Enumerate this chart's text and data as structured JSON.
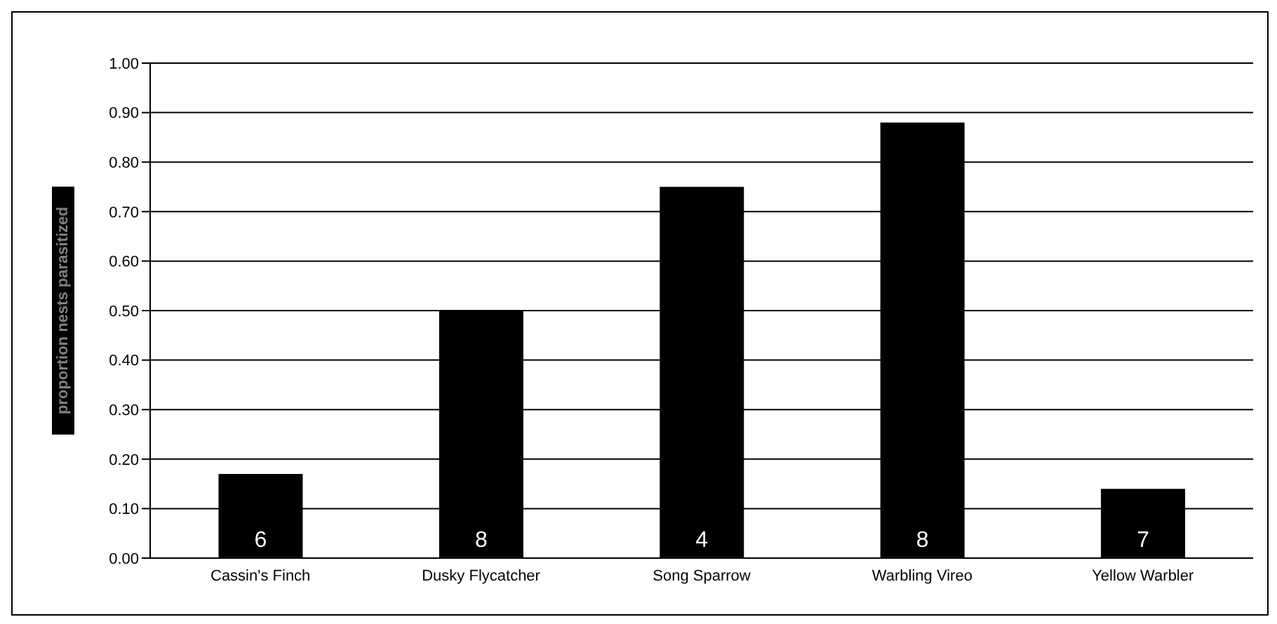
{
  "chart_data": {
    "type": "bar",
    "ylabel": "proportion nests parasitized",
    "categories": [
      "Cassin's Finch",
      "Dusky Flycatcher",
      "Song Sparrow",
      "Warbling Vireo",
      "Yellow Warbler"
    ],
    "values": [
      0.17,
      0.5,
      0.75,
      0.88,
      0.14
    ],
    "color": "#000000",
    "ylim": [
      0,
      1
    ],
    "yticks": [
      {
        "value": 0,
        "label": "0.00"
      },
      {
        "value": 0.1,
        "label": "0.10"
      },
      {
        "value": 0.2,
        "label": "0.20"
      },
      {
        "value": 0.3,
        "label": "0.30"
      },
      {
        "value": 0.4,
        "label": "0.40"
      },
      {
        "value": 0.5,
        "label": "0.50"
      },
      {
        "value": 0.6,
        "label": "0.60"
      },
      {
        "value": 0.7,
        "label": "0.70"
      },
      {
        "value": 0.8,
        "label": "0.80"
      },
      {
        "value": 0.9,
        "label": "0.90"
      },
      {
        "value": 1,
        "label": "1.00"
      }
    ],
    "grid": "y",
    "legend": false,
    "annotations": [
      "6",
      "8",
      "4",
      "8",
      "7"
    ]
  }
}
